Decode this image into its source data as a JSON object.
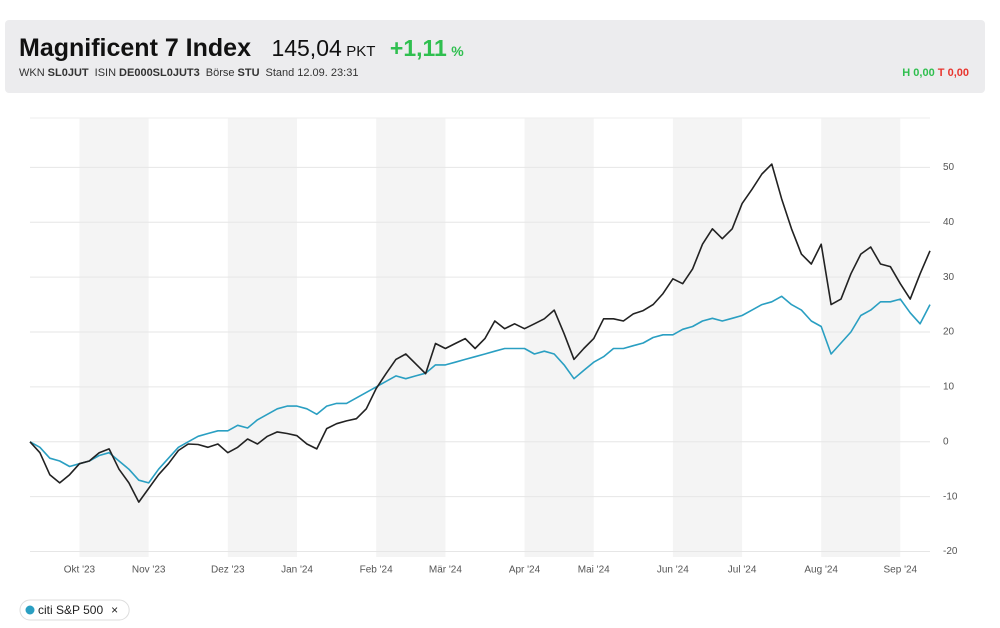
{
  "header": {
    "title": "Magnificent 7 Index",
    "price": "145,04",
    "price_unit": "PKT",
    "change": "+1,11",
    "change_unit": "%",
    "meta": [
      {
        "label": "WKN",
        "value": "SL0JUT"
      },
      {
        "label": "ISIN",
        "value": "DE000SL0JUT3"
      },
      {
        "label": "Börse",
        "value": "STU"
      },
      {
        "label": "Stand",
        "value": "12.09. 23:31"
      }
    ],
    "high": {
      "label": "H",
      "value": "0,00"
    },
    "low": {
      "label": "T",
      "value": "0,00"
    }
  },
  "chart_data": {
    "type": "line",
    "categories": [
      null,
      null,
      null,
      null,
      null,
      "Okt '23",
      null,
      null,
      null,
      null,
      null,
      null,
      "Nov '23",
      null,
      null,
      null,
      null,
      null,
      null,
      null,
      "Dez '23",
      null,
      null,
      null,
      null,
      null,
      null,
      "Jan '24",
      null,
      null,
      null,
      null,
      null,
      null,
      null,
      "Feb '24",
      null,
      null,
      null,
      null,
      null,
      null,
      "Mär '24",
      null,
      null,
      null,
      null,
      null,
      null,
      null,
      "Apr '24",
      null,
      null,
      null,
      null,
      null,
      null,
      "Mai '24",
      null,
      null,
      null,
      null,
      null,
      null,
      null,
      "Jun '24",
      null,
      null,
      null,
      null,
      null,
      null,
      "Jul '24",
      null,
      null,
      null,
      null,
      null,
      null,
      null,
      "Aug '24",
      null,
      null,
      null,
      null,
      null,
      null,
      null,
      "Sep '24",
      null,
      null,
      null
    ],
    "series": [
      {
        "color": "#222222",
        "values": [
          0,
          -2,
          -6,
          -7.5,
          -6,
          -4,
          -3.5,
          -2,
          -1.3,
          -5,
          -7.5,
          -11,
          -8.5,
          -6,
          -4,
          -1.6,
          -0.4,
          -0.5,
          -1,
          -0.4,
          -2,
          -1,
          0.5,
          -0.4,
          1,
          1.8,
          1.5,
          1.1,
          -0.4,
          -1.3,
          2.4,
          3.3,
          3.8,
          4.2,
          6,
          9.7,
          12.4,
          15,
          16,
          14.2,
          12.4,
          17.9,
          17,
          17.9,
          18.8,
          17,
          18.8,
          22,
          20.6,
          21.5,
          20.6,
          21.5,
          22.4,
          24,
          19.7,
          15,
          17,
          18.8,
          22.4,
          22.4,
          22,
          23.3,
          23.9,
          25,
          27,
          29.7,
          28.8,
          31.5,
          36,
          38.8,
          37,
          38.8,
          43.4,
          46,
          48.8,
          50.6,
          44.3,
          38.8,
          34.2,
          32.4,
          36,
          25,
          26,
          30.6,
          34.2,
          35.5,
          32.4,
          31.9,
          28.8,
          26,
          30.6,
          34.8
        ]
      },
      {
        "name": "citi S&P 500",
        "color": "#2a9fc2",
        "values": [
          0,
          -1,
          -3,
          -3.5,
          -4.5,
          -4,
          -3.5,
          -2.5,
          -2,
          -3.5,
          -5,
          -7,
          -7.5,
          -5,
          -3,
          -1,
          0,
          1,
          1.5,
          2,
          2,
          3,
          2.5,
          4,
          5,
          6,
          6.5,
          6.5,
          6,
          5,
          6.5,
          7,
          7,
          8,
          9,
          10,
          11,
          12,
          11.5,
          12,
          12.5,
          14,
          14,
          14.5,
          15,
          15.5,
          16,
          16.5,
          17,
          17,
          17,
          16,
          16.5,
          16,
          14,
          11.5,
          13,
          14.5,
          15.5,
          17,
          17,
          17.5,
          18,
          19,
          19.5,
          19.5,
          20.5,
          21,
          22,
          22.5,
          22,
          22.5,
          23,
          24,
          25,
          25.5,
          26.5,
          25,
          24,
          22,
          21,
          16,
          18,
          20,
          23,
          24,
          25.5,
          25.5,
          26,
          23.5,
          21.5,
          25
        ]
      }
    ],
    "ylim": [
      -21,
      59
    ],
    "yticks": [
      -20,
      -10,
      0,
      10,
      20,
      30,
      40,
      50
    ],
    "grid": true,
    "legend_remove": "×"
  }
}
